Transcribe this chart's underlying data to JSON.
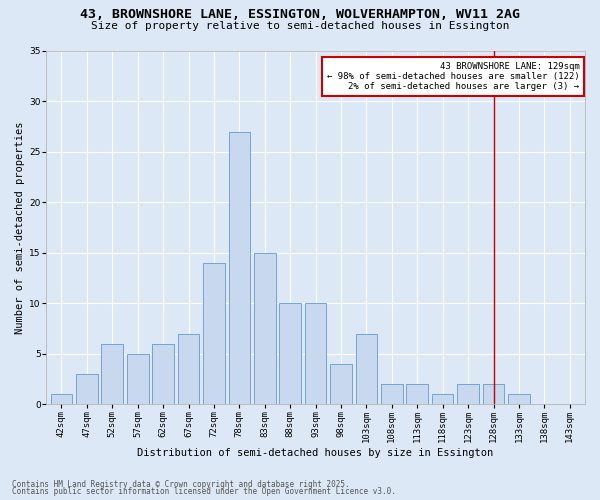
{
  "title_line1": "43, BROWNSHORE LANE, ESSINGTON, WOLVERHAMPTON, WV11 2AG",
  "title_line2": "Size of property relative to semi-detached houses in Essington",
  "xlabel": "Distribution of semi-detached houses by size in Essington",
  "ylabel": "Number of semi-detached properties",
  "bar_labels": [
    "42sqm",
    "47sqm",
    "52sqm",
    "57sqm",
    "62sqm",
    "67sqm",
    "72sqm",
    "78sqm",
    "83sqm",
    "88sqm",
    "93sqm",
    "98sqm",
    "103sqm",
    "108sqm",
    "113sqm",
    "118sqm",
    "123sqm",
    "128sqm",
    "133sqm",
    "138sqm",
    "143sqm"
  ],
  "bar_values": [
    1,
    3,
    6,
    5,
    6,
    7,
    14,
    27,
    15,
    10,
    10,
    4,
    7,
    2,
    2,
    1,
    2,
    2,
    1,
    0,
    0
  ],
  "bar_color": "#c8d8ee",
  "bar_edge_color": "#6699cc",
  "vline_x_index": 17,
  "vline_color": "#cc0000",
  "annotation_text": "43 BROWNSHORE LANE: 129sqm\n← 98% of semi-detached houses are smaller (122)\n2% of semi-detached houses are larger (3) →",
  "annotation_box_edge": "#cc0000",
  "annotation_fontsize": 6.5,
  "background_color": "#dce8f5",
  "plot_bg_color": "#dce8f5",
  "footer_line1": "Contains HM Land Registry data © Crown copyright and database right 2025.",
  "footer_line2": "Contains public sector information licensed under the Open Government Licence v3.0.",
  "ylim": [
    0,
    35
  ],
  "yticks": [
    0,
    5,
    10,
    15,
    20,
    25,
    30,
    35
  ],
  "title_fontsize": 9.5,
  "subtitle_fontsize": 8,
  "xlabel_fontsize": 7.5,
  "ylabel_fontsize": 7.5,
  "tick_fontsize": 6.5,
  "footer_fontsize": 5.5
}
